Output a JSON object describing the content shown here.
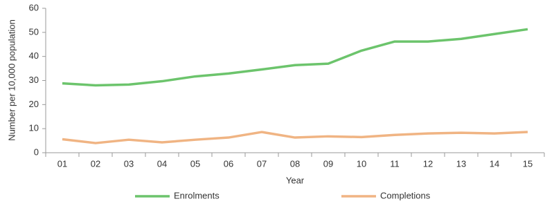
{
  "chart_data": {
    "type": "line",
    "y_label": "Number per 10,000 population",
    "x_label": "Year",
    "categories": [
      "01",
      "02",
      "03",
      "04",
      "05",
      "06",
      "07",
      "08",
      "09",
      "10",
      "11",
      "12",
      "13",
      "14",
      "15"
    ],
    "series": [
      {
        "name": "Enrolments",
        "color": "#6cc46c",
        "values": [
          28.8,
          28.0,
          28.3,
          29.7,
          31.7,
          32.9,
          34.6,
          36.4,
          37.0,
          42.4,
          46.2,
          46.2,
          47.3,
          49.3,
          51.3
        ]
      },
      {
        "name": "Completions",
        "color": "#f0b483",
        "values": [
          5.6,
          4.0,
          5.4,
          4.3,
          5.4,
          6.3,
          8.6,
          6.3,
          6.8,
          6.5,
          7.4,
          8.0,
          8.3,
          8.0,
          8.6
        ]
      }
    ],
    "ylim": [
      0,
      60
    ],
    "yticks": [
      0,
      10,
      20,
      30,
      40,
      50,
      60
    ],
    "grid": false
  }
}
